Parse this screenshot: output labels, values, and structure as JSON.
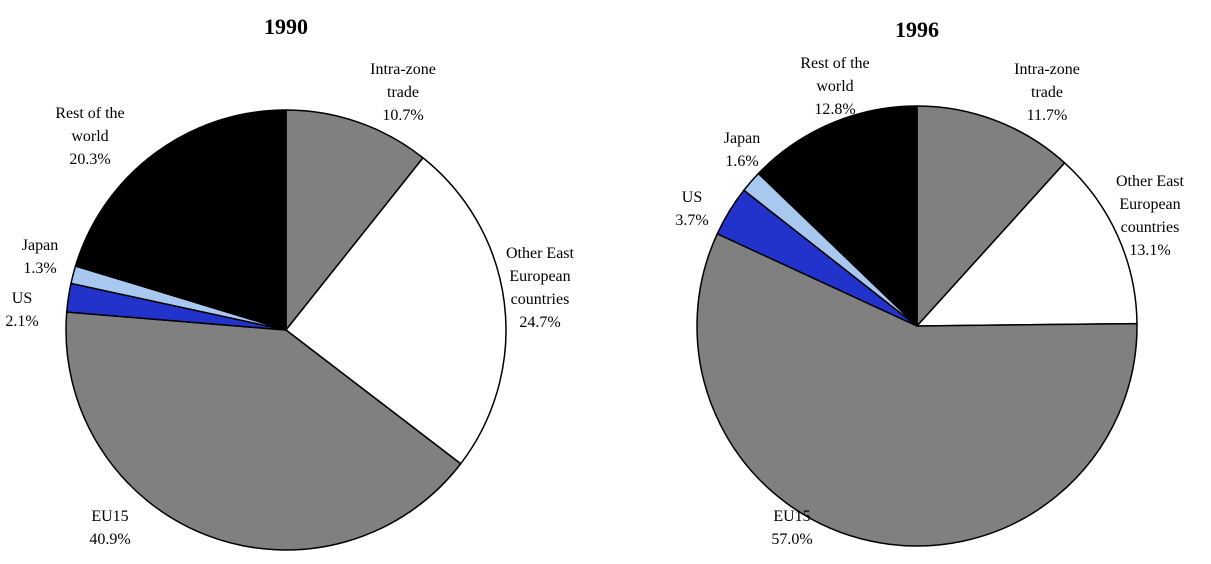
{
  "chart_data": [
    {
      "type": "pie",
      "title": "1990",
      "slices": [
        {
          "name": "Intra-zone trade",
          "label_lines": [
            "Intra-zone",
            "trade"
          ],
          "value": 10.7,
          "value_label": "10.7%",
          "color": "#808080"
        },
        {
          "name": "Other East European countries",
          "label_lines": [
            "Other East",
            "European",
            "countries"
          ],
          "value": 24.7,
          "value_label": "24.7%",
          "color": "#ffffff"
        },
        {
          "name": "EU15",
          "label_lines": [
            "EU15"
          ],
          "value": 40.9,
          "value_label": "40.9%",
          "color": "#808080"
        },
        {
          "name": "US",
          "label_lines": [
            "US"
          ],
          "value": 2.1,
          "value_label": "2.1%",
          "color": "#2233cc"
        },
        {
          "name": "Japan",
          "label_lines": [
            "Japan"
          ],
          "value": 1.3,
          "value_label": "1.3%",
          "color": "#a8c8f0"
        },
        {
          "name": "Rest of the world",
          "label_lines": [
            "Rest of the",
            "world"
          ],
          "value": 20.3,
          "value_label": "20.3%",
          "color": "#000000"
        }
      ]
    },
    {
      "type": "pie",
      "title": "1996",
      "slices": [
        {
          "name": "Intra-zone trade",
          "label_lines": [
            "Intra-zone",
            "trade"
          ],
          "value": 11.7,
          "value_label": "11.7%",
          "color": "#808080"
        },
        {
          "name": "Other East European countries",
          "label_lines": [
            "Other East",
            "European",
            "countries"
          ],
          "value": 13.1,
          "value_label": "13.1%",
          "color": "#ffffff"
        },
        {
          "name": "EU15",
          "label_lines": [
            "EU15"
          ],
          "value": 57.0,
          "value_label": "57.0%",
          "color": "#808080"
        },
        {
          "name": "US",
          "label_lines": [
            "US"
          ],
          "value": 3.7,
          "value_label": "3.7%",
          "color": "#2233cc"
        },
        {
          "name": "Japan",
          "label_lines": [
            "Japan"
          ],
          "value": 1.6,
          "value_label": "1.6%",
          "color": "#a8c8f0"
        },
        {
          "name": "Rest of the world",
          "label_lines": [
            "Rest of the",
            "world"
          ],
          "value": 12.8,
          "value_label": "12.8%",
          "color": "#000000"
        }
      ]
    }
  ]
}
